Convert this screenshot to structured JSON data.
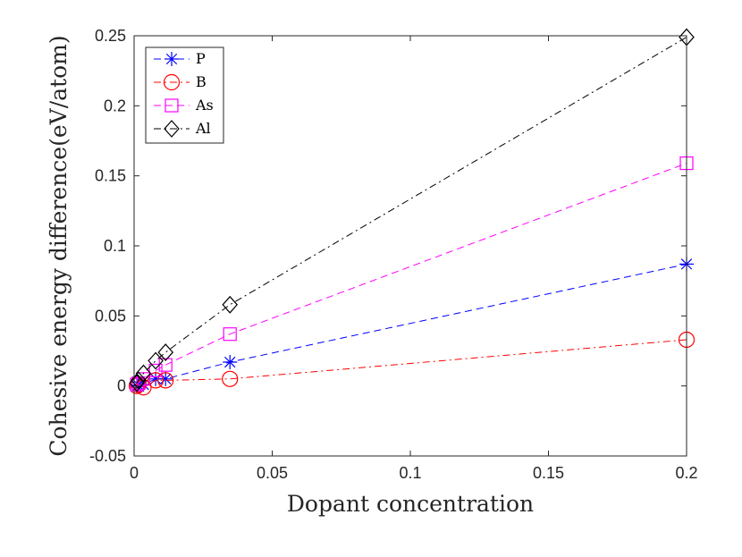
{
  "chart_data": {
    "type": "line",
    "title": "",
    "xlabel": "Dopant concentration",
    "ylabel": "Cohesive energy difference(eV/atom)",
    "xlim": [
      0,
      0.2
    ],
    "ylim": [
      -0.05,
      0.25
    ],
    "xticks": [
      0,
      0.05,
      0.1,
      0.15,
      0.2
    ],
    "xtick_labels": [
      "0",
      "0.05",
      "0.1",
      "0.15",
      "0.2"
    ],
    "yticks": [
      -0.05,
      0,
      0.05,
      0.1,
      0.15,
      0.2,
      0.25
    ],
    "ytick_labels": [
      "-0.05",
      "0",
      "0.05",
      "0.1",
      "0.15",
      "0.2",
      "0.25"
    ],
    "grid": false,
    "legend_position": "top-left",
    "series": [
      {
        "name": "P",
        "color": "#0000ff",
        "marker": "asterisk",
        "dash": "dashed",
        "x": [
          0.001,
          0.0016,
          0.0034,
          0.0078,
          0.0114,
          0.0347,
          0.2
        ],
        "y": [
          0.0,
          0.0005,
          0.001,
          0.005,
          0.005,
          0.017,
          0.087
        ]
      },
      {
        "name": "B",
        "color": "#ff0000",
        "marker": "circle",
        "dash": "dashdot",
        "x": [
          0.001,
          0.0016,
          0.0034,
          0.0078,
          0.0114,
          0.0347,
          0.2
        ],
        "y": [
          0.0,
          0.001,
          -0.001,
          0.004,
          0.004,
          0.005,
          0.033
        ]
      },
      {
        "name": "As",
        "color": "#ff00ff",
        "marker": "square",
        "dash": "dashed",
        "x": [
          0.001,
          0.0016,
          0.0034,
          0.0078,
          0.0114,
          0.0347,
          0.2
        ],
        "y": [
          0.001,
          0.002,
          0.005,
          0.011,
          0.015,
          0.037,
          0.159
        ]
      },
      {
        "name": "Al",
        "color": "#000000",
        "marker": "diamond",
        "dash": "dashdot",
        "x": [
          0.001,
          0.0016,
          0.0034,
          0.0078,
          0.0114,
          0.0347,
          0.2
        ],
        "y": [
          0.002,
          0.004,
          0.009,
          0.018,
          0.024,
          0.058,
          0.249
        ]
      }
    ]
  }
}
